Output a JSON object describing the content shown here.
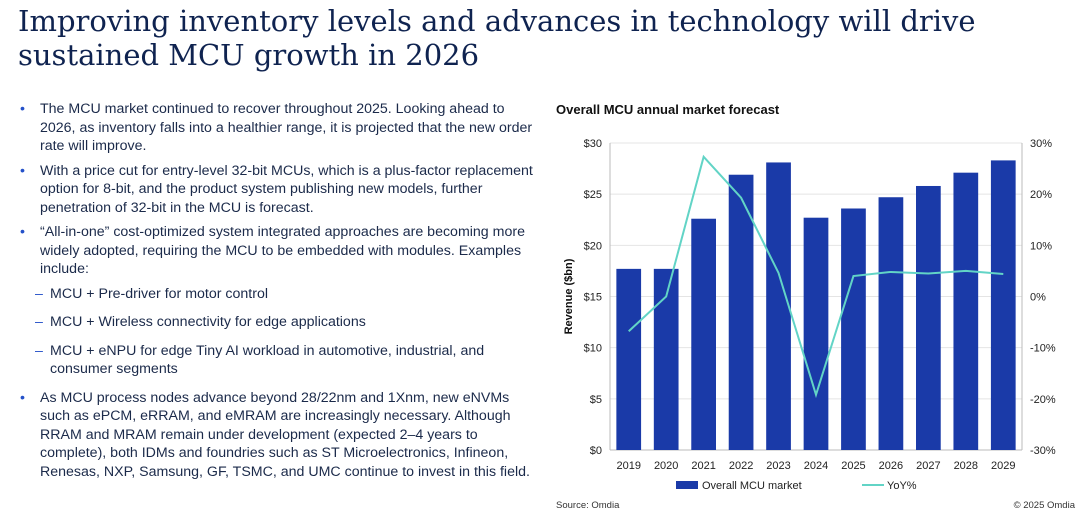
{
  "title": "Improving inventory levels and advances in technology will drive sustained MCU growth in 2026",
  "bullets": [
    "The MCU market continued to recover throughout 2025. Looking ahead to 2026, as inventory falls into a healthier range, it is projected that the new order rate will improve.",
    "With a price cut for entry-level 32-bit MCUs, which is a plus-factor replacement option for 8-bit, and the product system publishing new models, further penetration of 32-bit in the MCU is forecast.",
    "“All-in-one” cost-optimized system integrated approaches are becoming more widely adopted, requiring the MCU to be embedded with modules. Examples include:"
  ],
  "sub_bullets": [
    "MCU + Pre-driver for motor control",
    "MCU + Wireless connectivity for edge applications",
    "MCU + eNPU for edge Tiny AI workload in automotive, industrial, and consumer segments"
  ],
  "last_bullet": "As MCU process nodes advance beyond 28/22nm and 1Xnm, new eNVMs such as ePCM, eRRAM, and eMRAM are increasingly necessary. Although RRAM and MRAM remain under development (expected 2–4 years to complete), both IDMs and foundries such as ST Microelectronics, Infineon, Renesas, NXP, Samsung, GF, TSMC, and UMC continue to invest in this field.",
  "chart_data": {
    "type": "bar",
    "title": "Overall MCU annual market forecast",
    "ylabel": "Revenue ($bn)",
    "categories": [
      "2019",
      "2020",
      "2021",
      "2022",
      "2023",
      "2024",
      "2025",
      "2026",
      "2027",
      "2028",
      "2029"
    ],
    "series": [
      {
        "name": "Overall MCU market",
        "type": "bar",
        "axis": "left",
        "color": "#1a3aa8",
        "values": [
          17.7,
          17.7,
          22.6,
          26.9,
          28.1,
          22.7,
          23.6,
          24.7,
          25.8,
          27.1,
          28.3
        ]
      },
      {
        "name": "YoY%",
        "type": "line",
        "axis": "right",
        "color": "#62d4c6",
        "values": [
          -6.8,
          0,
          27.3,
          19.3,
          4.6,
          -19.2,
          4.0,
          4.8,
          4.5,
          5.0,
          4.4
        ]
      }
    ],
    "ylim": [
      0,
      30
    ],
    "yticks": [
      "$0",
      "$5",
      "$10",
      "$15",
      "$20",
      "$25",
      "$30"
    ],
    "y2lim": [
      -30,
      30
    ],
    "y2ticks": [
      "-30%",
      "-20%",
      "-10%",
      "0%",
      "10%",
      "20%",
      "30%"
    ],
    "grid": true,
    "legend": "bottom",
    "source": "Source: Omdia",
    "copyright": "© 2025 Omdia"
  }
}
